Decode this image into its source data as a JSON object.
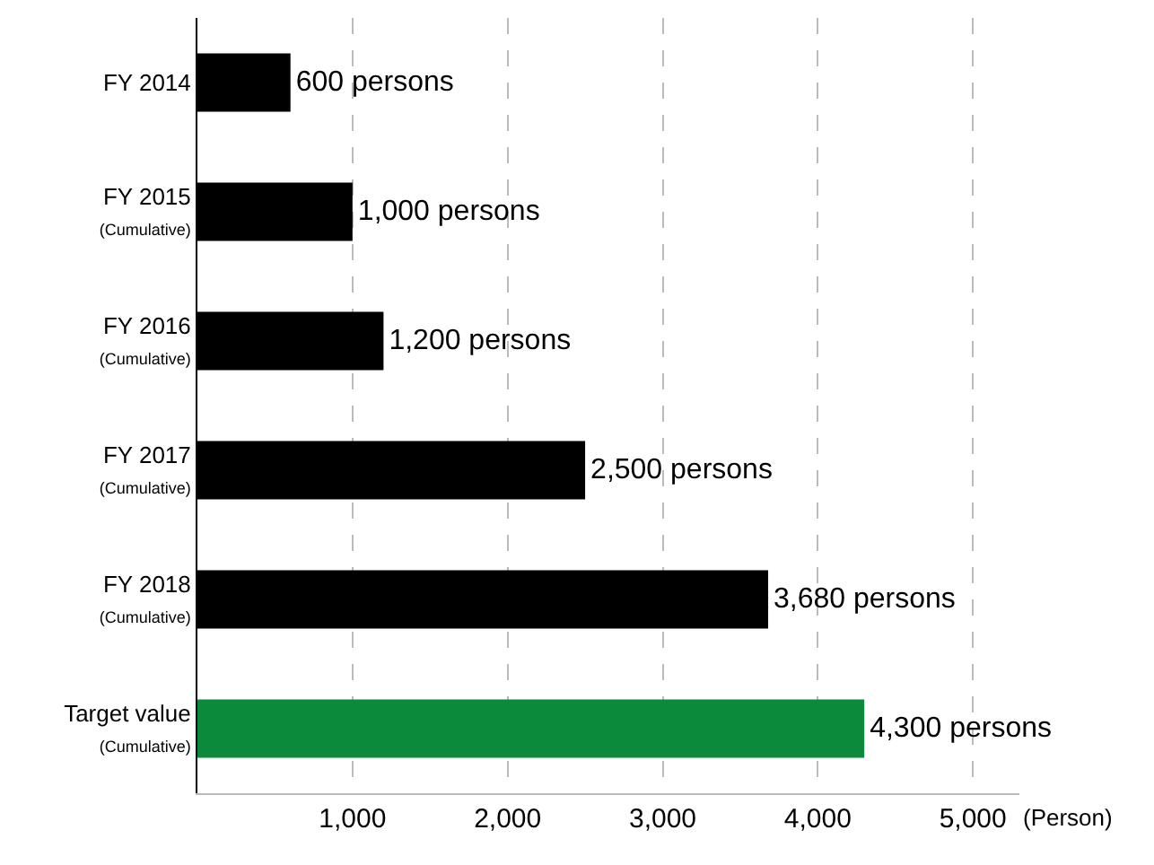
{
  "chart_data": {
    "type": "bar",
    "orientation": "horizontal",
    "categories": [
      "FY 2014",
      "FY 2015\n(Cumulative)",
      "FY 2016\n(Cumulative)",
      "FY 2017\n(Cumulative)",
      "FY 2018\n(Cumulative)",
      "Target value\n(Cumulative)"
    ],
    "values": [
      600,
      1000,
      1200,
      2500,
      3680,
      4300
    ],
    "colors": [
      "#000000",
      "#000000",
      "#000000",
      "#000000",
      "#000000",
      "#0a8a3a"
    ],
    "value_labels": [
      "600 persons",
      "1,000 persons",
      "1,200 persons",
      "2,500 persons",
      "3,680 persons",
      "4,300 persons"
    ],
    "xlabel": "(Person)",
    "xlim": [
      0,
      5300
    ],
    "xticks": [
      {
        "value": 1000,
        "label": "1,000"
      },
      {
        "value": 2000,
        "label": "2,000"
      },
      {
        "value": 3000,
        "label": "3,000"
      },
      {
        "value": 4000,
        "label": "4,000"
      },
      {
        "value": 5000,
        "label": "5,000"
      }
    ],
    "grid": "x",
    "legend": false
  }
}
